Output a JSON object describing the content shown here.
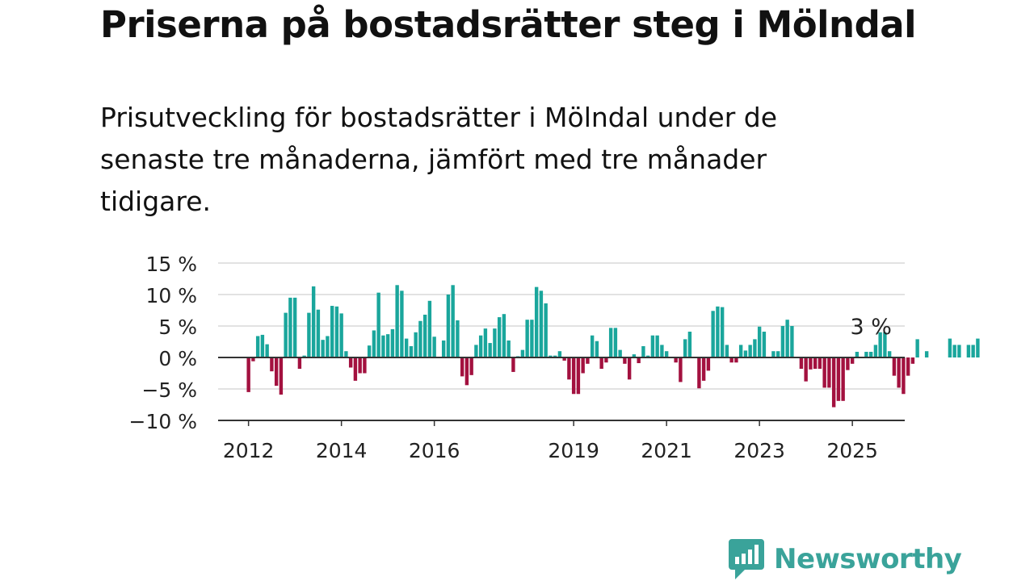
{
  "header": {
    "title": "Priserna på bostadsrätter steg i Mölndal",
    "subtitle": "Prisutveckling för bostadsrätter i Mölndal under de senaste tre månaderna, jämfört med tre månader tidigare."
  },
  "brand": {
    "name": "Newsworthy",
    "color": "#3aa39a"
  },
  "colors": {
    "positive": "#1aa69c",
    "negative": "#a3113f",
    "grid": "#d9d9d9",
    "axis": "#333333"
  },
  "chart_data": {
    "type": "bar",
    "x_start": "2011-10",
    "ylim": [
      -10,
      15
    ],
    "yticks": [
      {
        "value": 15,
        "label": "15 %"
      },
      {
        "value": 10,
        "label": "10 %"
      },
      {
        "value": 5,
        "label": "5 %"
      },
      {
        "value": 0,
        "label": "0 %"
      },
      {
        "value": -5,
        "label": "−5 %"
      },
      {
        "value": -10,
        "label": "−10 %"
      }
    ],
    "xticks": [
      {
        "label": "2012",
        "index": 3
      },
      {
        "label": "2014",
        "index": 23
      },
      {
        "label": "2016",
        "index": 43
      },
      {
        "label": "2019",
        "index": 73
      },
      {
        "label": "2021",
        "index": 93
      },
      {
        "label": "2023",
        "index": 113
      },
      {
        "label": "2025",
        "index": 133
      }
    ],
    "annotation": {
      "text": "3 %",
      "index": 137
    },
    "values": [
      null,
      null,
      null,
      -5.5,
      -0.6,
      3.4,
      3.6,
      2.1,
      -2.2,
      -4.5,
      -5.9,
      7.1,
      9.5,
      9.5,
      -1.8,
      0.3,
      7.1,
      11.3,
      7.6,
      2.8,
      3.4,
      8.2,
      8.1,
      7.0,
      1.0,
      -1.6,
      -3.7,
      -2.5,
      -2.5,
      1.9,
      4.3,
      10.3,
      3.5,
      3.7,
      4.5,
      11.5,
      10.6,
      3.0,
      1.8,
      4.0,
      5.8,
      6.8,
      9.0,
      3.3,
      0.0,
      2.7,
      10.0,
      11.5,
      5.9,
      -3.0,
      -4.4,
      -2.8,
      2.0,
      3.5,
      4.6,
      2.3,
      4.6,
      6.4,
      6.9,
      2.7,
      -2.3,
      0.2,
      1.2,
      6.0,
      6.0,
      11.2,
      10.6,
      8.6,
      0.3,
      0.3,
      1.0,
      -0.5,
      -3.5,
      -5.8,
      -5.8,
      -2.5,
      -1.0,
      3.5,
      2.6,
      -1.8,
      -0.8,
      4.7,
      4.7,
      1.2,
      -1.0,
      -3.5,
      0.5,
      -0.9,
      1.8,
      0.3,
      3.5,
      3.5,
      2.0,
      1.0,
      0.0,
      -0.8,
      -3.9,
      2.9,
      4.1,
      0.0,
      -4.9,
      -3.7,
      -2.1,
      7.4,
      8.1,
      8.0,
      2.0,
      -0.8,
      -0.8,
      2.0,
      1.1,
      2.0,
      2.9,
      4.9,
      4.1,
      0.0,
      1.0,
      1.0,
      5.0,
      6.0,
      5.0,
      0.0,
      -1.8,
      -3.8,
      -1.9,
      -1.8,
      -1.8,
      -4.8,
      -4.8,
      -7.9,
      -6.9,
      -6.9,
      -2.0,
      -1.0,
      0.9,
      0.0,
      0.9,
      0.9,
      2.0,
      4.0,
      4.0,
      1.0,
      -2.9,
      -4.8,
      -5.8,
      -2.9,
      -1.0,
      2.9,
      0.0,
      1.0,
      0.0,
      0.0,
      0.0,
      0.0,
      3.0,
      2.0,
      2.0,
      0.0,
      2.0,
      2.0,
      3.0
    ]
  }
}
